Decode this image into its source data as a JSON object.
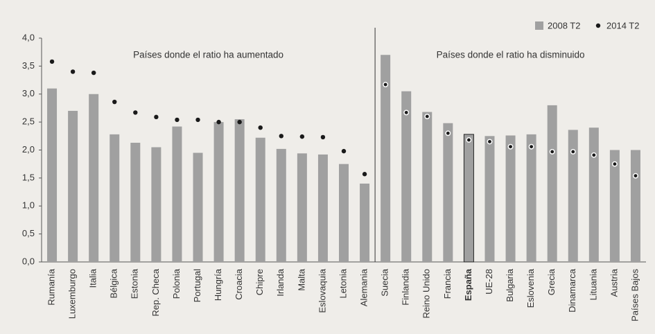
{
  "chart_data": {
    "type": "bar",
    "categories": [
      "Rumanía",
      "Luxemburgo",
      "Italia",
      "Bélgica",
      "Estonia",
      "Rep. Checa",
      "Polonia",
      "Portugal",
      "Hungría",
      "Croacia",
      "Chipre",
      "Irlanda",
      "Malta",
      "Eslovaquia",
      "Letonia",
      "Alemania",
      "Suecia",
      "Finlandia",
      "Reino Unido",
      "Francia",
      "España",
      "UE-28",
      "Bulgaria",
      "Eslovenia",
      "Grecia",
      "Dinamarca",
      "Lituania",
      "Austria",
      "Países Bajos"
    ],
    "series": [
      {
        "name": "2008 T2",
        "type": "bar",
        "color": "#a0a0a0",
        "values": [
          3.1,
          2.7,
          3.0,
          2.28,
          2.13,
          2.05,
          2.42,
          1.95,
          2.5,
          2.55,
          2.22,
          2.02,
          1.94,
          1.92,
          1.75,
          1.4,
          3.7,
          3.05,
          2.68,
          2.48,
          2.28,
          2.25,
          2.26,
          2.28,
          2.8,
          2.36,
          2.4,
          2.0,
          2.0
        ]
      },
      {
        "name": "2014 T2",
        "type": "dot",
        "color": "#1a1a1a",
        "values": [
          3.58,
          3.4,
          3.38,
          2.86,
          2.67,
          2.59,
          2.54,
          2.54,
          2.5,
          2.5,
          2.4,
          2.25,
          2.24,
          2.23,
          1.98,
          1.57,
          3.17,
          2.67,
          2.6,
          2.3,
          2.18,
          2.15,
          2.06,
          2.06,
          1.97,
          1.97,
          1.91,
          1.75,
          1.54
        ]
      }
    ],
    "annotations": [
      "Países donde el ratio ha aumentado",
      "Países donde el ratio ha disminuido"
    ],
    "ylim": [
      0,
      4
    ],
    "yticks": [
      {
        "value": 0,
        "label": "0,0"
      },
      {
        "value": 0.5,
        "label": "0,5"
      },
      {
        "value": 1,
        "label": "1,0"
      },
      {
        "value": 1.5,
        "label": "1,5"
      },
      {
        "value": 2,
        "label": "2,0"
      },
      {
        "value": 2.5,
        "label": "2,5"
      },
      {
        "value": 3,
        "label": "3,0"
      },
      {
        "value": 3.5,
        "label": "3,5"
      },
      {
        "value": 4,
        "label": "4,0"
      }
    ],
    "legend": "top-right",
    "grid": false
  }
}
